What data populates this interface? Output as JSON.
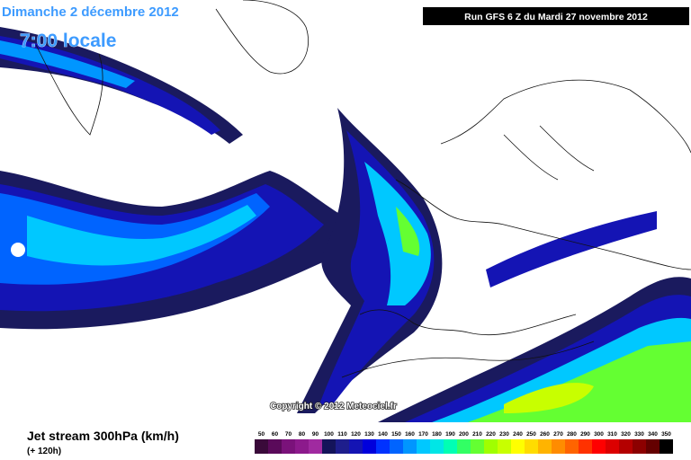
{
  "header": {
    "date": "Dimanche 2 décembre 2012",
    "time": "7:00 locale",
    "run": "Run GFS 6 Z du Mardi 27 novembre 2012"
  },
  "copyright": "Copyright © 2012 Meteociel.fr",
  "footer": {
    "title": "Jet stream 300hPa (km/h)",
    "lead": "(+ 120h)"
  },
  "legend": {
    "labels": [
      "50",
      "60",
      "70",
      "80",
      "90",
      "100",
      "110",
      "120",
      "130",
      "140",
      "150",
      "160",
      "170",
      "180",
      "190",
      "200",
      "210",
      "220",
      "230",
      "240",
      "250",
      "260",
      "270",
      "280",
      "290",
      "300",
      "310",
      "320",
      "330",
      "340",
      "350"
    ]
  }
}
